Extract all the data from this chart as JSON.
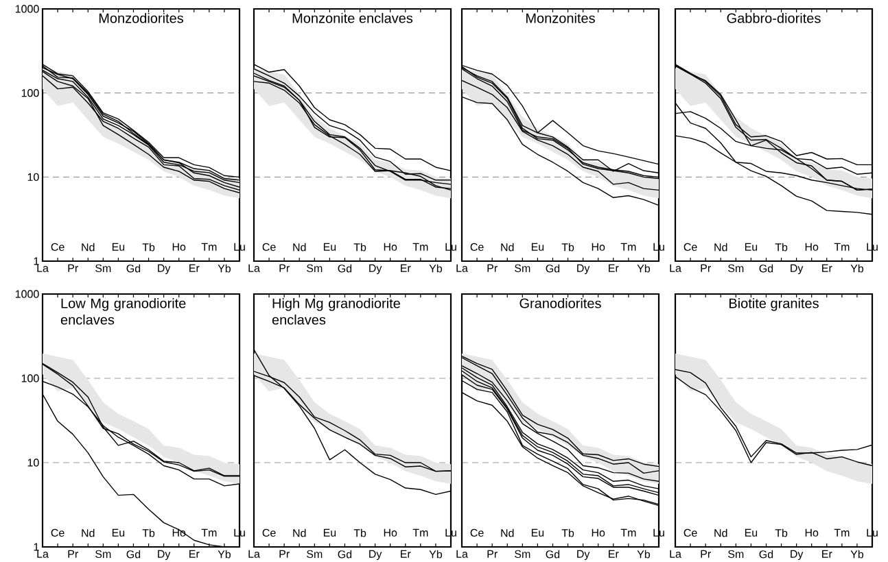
{
  "chart_data": [
    {
      "type": "line",
      "title": "Monzodiorites",
      "categories": [
        "La",
        "Ce",
        "Pr",
        "Nd",
        "Sm",
        "Eu",
        "Gd",
        "Tb",
        "Dy",
        "Ho",
        "Er",
        "Tm",
        "Yb",
        "Lu"
      ],
      "ylim": [
        1,
        1000
      ],
      "yticks": [
        1,
        10,
        100,
        1000
      ],
      "log": true,
      "grid": "y",
      "series": [
        {
          "color": "#e6e6e6",
          "values": [
            null,
            null,
            null,
            null,
            null,
            null,
            null,
            null,
            null,
            null,
            null,
            null,
            null,
            null
          ],
          "lower": [
            112,
            70,
            77,
            48,
            30,
            25,
            20,
            16,
            11.7,
            10,
            7.9,
            7,
            6,
            5.6
          ],
          "upper": [
            197,
            180,
            166,
            96,
            52,
            38,
            31,
            25,
            16,
            15,
            12.4,
            12,
            10,
            9.6
          ]
        },
        {
          "color": "#000000",
          "values": [
            219,
            169,
            160,
            104,
            58,
            49,
            36,
            26,
            17,
            17,
            14,
            13,
            10.4,
            10
          ]
        },
        {
          "color": "#000000",
          "values": [
            200,
            166,
            148,
            96,
            53,
            44,
            35,
            25,
            16,
            15,
            12.6,
            12,
            9.6,
            9.2
          ]
        },
        {
          "color": "#000000",
          "values": [
            187,
            148,
            137,
            89,
            49,
            41,
            32,
            24,
            15,
            14,
            11.7,
            11.3,
            9.2,
            8.6
          ]
        },
        {
          "color": "#000000",
          "values": [
            160,
            112,
            117,
            76,
            46,
            38,
            29,
            22.7,
            14,
            13.6,
            9.6,
            9.4,
            7.9,
            7.0
          ]
        },
        {
          "color": "#000000",
          "values": [
            180,
            137,
            121,
            86,
            41,
            32,
            24.5,
            18.6,
            13.1,
            11.7,
            9.2,
            8.9,
            7.3,
            6.5
          ]
        },
        {
          "color": "#000000",
          "values": [
            210,
            154,
            151,
            100,
            56,
            46,
            33,
            24.5,
            16,
            14.8,
            11.2,
            10.4,
            8.6,
            7.6
          ]
        }
      ]
    },
    {
      "type": "line",
      "title": "Monzonite enclaves",
      "categories": [
        "La",
        "Ce",
        "Pr",
        "Nd",
        "Sm",
        "Eu",
        "Gd",
        "Tb",
        "Dy",
        "Ho",
        "Er",
        "Tm",
        "Yb",
        "Lu"
      ],
      "ylim": [
        1,
        1000
      ],
      "yticks": [
        1,
        10,
        100,
        1000
      ],
      "log": true,
      "grid": "y",
      "tick_labels": "x",
      "series": [
        {
          "color": "#e6e6e6",
          "values": [
            null,
            null,
            null,
            null,
            null,
            null,
            null,
            null,
            null,
            null,
            null,
            null,
            null,
            null
          ],
          "lower": [
            112,
            70,
            77,
            48,
            30,
            25,
            20,
            16,
            11.7,
            10,
            7.9,
            7,
            6,
            5.6
          ],
          "upper": [
            197,
            180,
            166,
            96,
            52,
            38,
            31,
            25,
            16,
            15,
            12.4,
            12,
            10,
            9.6
          ]
        },
        {
          "color": "#000000",
          "values": [
            219,
            177,
            190,
            121,
            67,
            48,
            42,
            32,
            22,
            21.5,
            16.4,
            16.4,
            13.1,
            11.9
          ]
        },
        {
          "color": "#000000",
          "values": [
            194,
            160,
            131,
            92,
            58,
            41,
            36,
            27.5,
            17.3,
            15.3,
            10.8,
            11,
            9.2,
            9.2
          ]
        },
        {
          "color": "#000000",
          "values": [
            172,
            141,
            121,
            82,
            46,
            32,
            30,
            22,
            13.7,
            11.7,
            9.2,
            9.2,
            8.6,
            8.2
          ]
        },
        {
          "color": "#000000",
          "values": [
            137,
            131,
            108,
            76,
            42,
            31,
            24.5,
            18.6,
            11.7,
            11.9,
            11.2,
            10.2,
            7.9,
            7.0
          ]
        },
        {
          "color": "#000000",
          "values": [
            160,
            137,
            117,
            82,
            39,
            30,
            29.5,
            21,
            12.2,
            11.9,
            9.4,
            9.4,
            7.6,
            7.3
          ]
        }
      ]
    },
    {
      "type": "line",
      "title": "Monzonites",
      "categories": [
        "La",
        "Ce",
        "Pr",
        "Nd",
        "Sm",
        "Eu",
        "Gd",
        "Tb",
        "Dy",
        "Ho",
        "Er",
        "Tm",
        "Yb",
        "Lu"
      ],
      "ylim": [
        1,
        1000
      ],
      "yticks": [
        1,
        10,
        100,
        1000
      ],
      "log": true,
      "grid": "y",
      "tick_labels": "x",
      "series": [
        {
          "color": "#e6e6e6",
          "values": [
            null,
            null,
            null,
            null,
            null,
            null,
            null,
            null,
            null,
            null,
            null,
            null,
            null,
            null
          ],
          "lower": [
            112,
            70,
            77,
            48,
            30,
            25,
            20,
            16,
            11.7,
            10,
            7.9,
            7,
            6,
            5.6
          ],
          "upper": [
            197,
            180,
            166,
            96,
            52,
            38,
            31,
            25,
            16,
            15,
            12.4,
            12,
            10,
            9.6
          ]
        },
        {
          "color": "#000000",
          "values": [
            213,
            186,
            168,
            123,
            70,
            33.6,
            47,
            33.6,
            23.6,
            20.5,
            19,
            17.3,
            15.7,
            14.2
          ]
        },
        {
          "color": "#000000",
          "values": [
            200,
            160,
            137,
            89,
            41,
            33.6,
            30,
            22.7,
            16,
            16,
            11.7,
            14.5,
            11.9,
            11.2
          ]
        },
        {
          "color": "#000000",
          "values": [
            206,
            154,
            131,
            86,
            38,
            28.6,
            27.5,
            21,
            14.8,
            13.1,
            12.2,
            11.7,
            10.4,
            10
          ]
        },
        {
          "color": "#000000",
          "values": [
            194,
            148,
            121,
            79,
            36,
            30,
            28.6,
            22,
            14.2,
            12.6,
            11.9,
            11.2,
            10,
            9.6
          ]
        },
        {
          "color": "#000000",
          "values": [
            141,
            117,
            96,
            67,
            35,
            27.5,
            23.6,
            18.6,
            13.1,
            11.7,
            8.2,
            8.6,
            7.3,
            7.0
          ]
        },
        {
          "color": "#000000",
          "values": [
            90,
            77,
            75,
            48,
            24.5,
            18.6,
            15,
            11.7,
            8.6,
            7.3,
            5.7,
            6.0,
            5.4,
            4.6
          ]
        }
      ]
    },
    {
      "type": "line",
      "title": "Gabbro-diorites",
      "categories": [
        "La",
        "Ce",
        "Pr",
        "Nd",
        "Sm",
        "Eu",
        "Gd",
        "Tb",
        "Dy",
        "Ho",
        "Er",
        "Tm",
        "Yb",
        "Lu"
      ],
      "ylim": [
        1,
        1000
      ],
      "yticks": [
        1,
        10,
        100,
        1000
      ],
      "log": true,
      "grid": "y",
      "tick_labels": "x",
      "series": [
        {
          "color": "#e6e6e6",
          "values": [
            null,
            null,
            null,
            null,
            null,
            null,
            null,
            null,
            null,
            null,
            null,
            null,
            null,
            null
          ],
          "lower": [
            112,
            70,
            77,
            48,
            30,
            25,
            20,
            16,
            11.7,
            10,
            7.9,
            7,
            6,
            5.6
          ],
          "upper": [
            197,
            180,
            166,
            96,
            52,
            38,
            31,
            25,
            16,
            15,
            12.4,
            12,
            10,
            9.6
          ]
        },
        {
          "color": "#000000",
          "values": [
            219,
            172,
            137,
            92,
            42,
            30,
            31,
            26.5,
            18,
            19.6,
            16.4,
            16.6,
            14,
            14
          ]
        },
        {
          "color": "#000000",
          "values": [
            210,
            168,
            131,
            86,
            39,
            27.5,
            28,
            22,
            16.6,
            16,
            12.6,
            13.1,
            10.8,
            11.2
          ]
        },
        {
          "color": "#000000",
          "values": [
            213,
            168,
            140,
            96,
            48,
            23.6,
            27.5,
            19.4,
            14.8,
            13.6,
            9.2,
            8.9,
            7.0,
            7.2
          ]
        },
        {
          "color": "#000000",
          "values": [
            76,
            44,
            38,
            25.5,
            15,
            14.5,
            11.7,
            11.2,
            10.4,
            9.2,
            8.6,
            7.9,
            7.3,
            7.0
          ]
        },
        {
          "color": "#000000",
          "values": [
            57,
            60,
            50,
            38,
            26.5,
            23.6,
            22,
            21,
            16.6,
            12.6,
            9.2,
            8.9,
            7.0,
            7.2
          ]
        },
        {
          "color": "#000000",
          "values": [
            31,
            29,
            25.5,
            19.4,
            15,
            11.9,
            10.2,
            7.9,
            5.9,
            5.2,
            4.0,
            3.9,
            3.8,
            3.6
          ]
        }
      ]
    },
    {
      "type": "line",
      "title": "Low Mg granodiorite enclaves",
      "categories": [
        "La",
        "Ce",
        "Pr",
        "Nd",
        "Sm",
        "Eu",
        "Gd",
        "Tb",
        "Dy",
        "Ho",
        "Er",
        "Tm",
        "Yb",
        "Lu"
      ],
      "ylim": [
        1,
        1000
      ],
      "yticks": [
        1,
        10,
        100,
        1000
      ],
      "log": true,
      "grid": "y",
      "series": [
        {
          "color": "#e6e6e6",
          "values": [
            null,
            null,
            null,
            null,
            null,
            null,
            null,
            null,
            null,
            null,
            null,
            null,
            null,
            null
          ],
          "lower": [
            112,
            70,
            77,
            48,
            30,
            25,
            20,
            16,
            11.7,
            10,
            7.9,
            7,
            6,
            5.6
          ],
          "upper": [
            197,
            180,
            166,
            96,
            52,
            38,
            31,
            25,
            16,
            15,
            12.4,
            12,
            10,
            9.6
          ]
        },
        {
          "color": "#000000",
          "values": [
            150,
            117,
            90,
            60,
            26.5,
            16,
            18,
            14.2,
            10.4,
            10,
            8.0,
            8.6,
            7.0,
            7.0
          ]
        },
        {
          "color": "#000000",
          "values": [
            147,
            112,
            82,
            47,
            25.5,
            22,
            16.6,
            13.6,
            10.2,
            9.4,
            7.9,
            8.2,
            6.9,
            6.9
          ]
        },
        {
          "color": "#000000",
          "values": [
            92,
            79,
            65,
            46,
            27.5,
            20,
            16,
            12.6,
            9.2,
            8.2,
            6.4,
            6.4,
            5.3,
            5.6
          ]
        },
        {
          "color": "#000000",
          "values": [
            65,
            31,
            21.7,
            13.1,
            6.8,
            4.1,
            4.2,
            2.8,
            1.94,
            1.6,
            1.2,
            1.06,
            1.0,
            null
          ]
        }
      ]
    },
    {
      "type": "line",
      "title": "High Mg granodiorite enclaves",
      "categories": [
        "La",
        "Ce",
        "Pr",
        "Nd",
        "Sm",
        "Eu",
        "Gd",
        "Tb",
        "Dy",
        "Ho",
        "Er",
        "Tm",
        "Yb",
        "Lu"
      ],
      "ylim": [
        1,
        1000
      ],
      "yticks": [
        1,
        10,
        100,
        1000
      ],
      "log": true,
      "grid": "y",
      "tick_labels": "x",
      "series": [
        {
          "color": "#e6e6e6",
          "values": [
            null,
            null,
            null,
            null,
            null,
            null,
            null,
            null,
            null,
            null,
            null,
            null,
            null,
            null
          ],
          "lower": [
            112,
            70,
            77,
            48,
            30,
            25,
            20,
            16,
            11.7,
            10,
            7.9,
            7,
            6,
            5.6
          ],
          "upper": [
            197,
            180,
            166,
            96,
            52,
            38,
            31,
            25,
            16,
            15,
            12.4,
            12,
            10,
            9.6
          ]
        },
        {
          "color": "#000000",
          "values": [
            219,
            108,
            76,
            47,
            25.5,
            10.8,
            14.2,
            10,
            7.3,
            6.3,
            5.0,
            4.8,
            4.2,
            4.6
          ]
        },
        {
          "color": "#000000",
          "values": [
            121,
            105,
            89,
            60,
            34.8,
            30,
            24,
            18.6,
            12.6,
            12.2,
            10,
            10,
            7.9,
            8.0
          ]
        },
        {
          "color": "#000000",
          "values": [
            108,
            92,
            77,
            49,
            33.6,
            24.5,
            20,
            16.6,
            12.2,
            11.2,
            8.9,
            9.1,
            7.9,
            8.0
          ]
        }
      ]
    },
    {
      "type": "line",
      "title": "Granodiorites",
      "categories": [
        "La",
        "Ce",
        "Pr",
        "Nd",
        "Sm",
        "Eu",
        "Gd",
        "Tb",
        "Dy",
        "Ho",
        "Er",
        "Tm",
        "Yb",
        "Lu"
      ],
      "ylim": [
        1,
        1000
      ],
      "yticks": [
        1,
        10,
        100,
        1000
      ],
      "log": true,
      "grid": "y",
      "tick_labels": "x",
      "series": [
        {
          "color": "#e6e6e6",
          "values": [
            null,
            null,
            null,
            null,
            null,
            null,
            null,
            null,
            null,
            null,
            null,
            null,
            null,
            null
          ],
          "lower": [
            112,
            70,
            77,
            48,
            30,
            25,
            20,
            16,
            11.7,
            10,
            7.9,
            7,
            6,
            5.6
          ],
          "upper": [
            197,
            180,
            166,
            96,
            52,
            38,
            31,
            25,
            16,
            15,
            12.4,
            12,
            10,
            9.6
          ]
        },
        {
          "color": "#000000",
          "values": [
            183,
            150,
            128,
            71,
            36.6,
            28.5,
            24.7,
            19.5,
            12.7,
            12.4,
            10.6,
            11.1,
            9.6,
            9
          ]
        },
        {
          "color": "#000000",
          "values": [
            176,
            141,
            114,
            63,
            33.8,
            23,
            21.4,
            17.3,
            12.2,
            11.2,
            9.6,
            10,
            7.5,
            8.0
          ]
        },
        {
          "color": "#000000",
          "values": [
            141,
            114,
            90,
            54,
            29,
            22.2,
            18.0,
            14.3,
            9.2,
            8.7,
            7.6,
            7.5,
            6.4,
            6.0
          ]
        },
        {
          "color": "#000000",
          "values": [
            133,
            102,
            83,
            46,
            22.8,
            16.7,
            14.3,
            11.3,
            8.2,
            7.6,
            6.0,
            6.2,
            5.3,
            4.9
          ]
        },
        {
          "color": "#000000",
          "values": [
            123,
            92,
            77,
            44,
            21,
            15.4,
            13.2,
            10.4,
            7.3,
            7.0,
            5.3,
            5.5,
            4.9,
            4.4
          ]
        },
        {
          "color": "#000000",
          "values": [
            110,
            83,
            74,
            43,
            19.6,
            14.0,
            12.2,
            9.6,
            6.8,
            6.5,
            5.1,
            5.1,
            4.6,
            4.1
          ]
        },
        {
          "color": "#000000",
          "values": [
            94,
            74,
            68,
            40,
            16.0,
            12.6,
            10.4,
            8.5,
            5.5,
            4.9,
            3.6,
            3.75,
            3.6,
            3.2
          ]
        },
        {
          "color": "#000000",
          "values": [
            68,
            54,
            48,
            31,
            15.4,
            11.3,
            9.2,
            7.6,
            5.3,
            4.4,
            3.7,
            4.0,
            3.5,
            3.1
          ]
        }
      ]
    },
    {
      "type": "line",
      "title": "Biotite granites",
      "categories": [
        "La",
        "Ce",
        "Pr",
        "Nd",
        "Sm",
        "Eu",
        "Gd",
        "Tb",
        "Dy",
        "Ho",
        "Er",
        "Tm",
        "Yb",
        "Lu"
      ],
      "ylim": [
        1,
        1000
      ],
      "yticks": [
        1,
        10,
        100,
        1000
      ],
      "log": true,
      "grid": "y",
      "tick_labels": "x",
      "series": [
        {
          "color": "#e6e6e6",
          "values": [
            null,
            null,
            null,
            null,
            null,
            null,
            null,
            null,
            null,
            null,
            null,
            null,
            null,
            null
          ],
          "lower": [
            112,
            70,
            77,
            48,
            30,
            25,
            20,
            16,
            11.7,
            10,
            7.9,
            7,
            6,
            5.6
          ],
          "upper": [
            197,
            180,
            166,
            96,
            52,
            38,
            31,
            25,
            16,
            15,
            12.4,
            12,
            10,
            9.6
          ]
        },
        {
          "color": "#000000",
          "values": [
            127,
            117,
            88,
            45,
            27,
            11.7,
            18.3,
            16.7,
            13.0,
            13.0,
            13.4,
            14.0,
            14.3,
            16.2
          ]
        },
        {
          "color": "#000000",
          "values": [
            105,
            78,
            64,
            41,
            24,
            10.0,
            17.3,
            16.4,
            12.5,
            13.2,
            11.1,
            11.7,
            10.2,
            9.2
          ]
        }
      ]
    }
  ]
}
